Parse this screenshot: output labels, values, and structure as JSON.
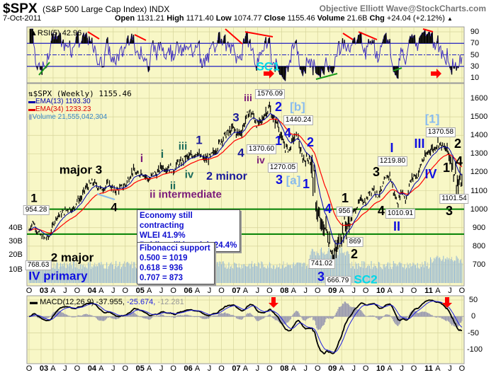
{
  "header": {
    "symbol": "$SPX",
    "name": "(S&P 500 Large Cap Index)",
    "exchange": "INDX",
    "brand": "Objective Elliott Wave@StockCharts.com",
    "date": "7-Oct-2011",
    "open_label": "Open",
    "open": "1131.21",
    "high_label": "High",
    "high": "1171.40",
    "low_label": "Low",
    "low": "1074.77",
    "close_label": "Close",
    "close": "1155.46",
    "volume_label": "Volume",
    "volume": "21.6B",
    "chg_label": "Chg",
    "chg": "+24.04 (+2.12%)",
    "chg_icon": "triangle-up-icon"
  },
  "rsi": {
    "legend": "RSI(5) 42.96",
    "ticks": [
      "90",
      "70",
      "50",
      "30",
      "10"
    ],
    "levels": [
      70,
      50,
      30
    ]
  },
  "main": {
    "legend": "$SPX (Weekly) 1155.46",
    "ema13": "EMA(13) 1193.30",
    "ema34": "EMA(34) 1233.23",
    "volume": "Volume 21,555,042,304",
    "price_ticks": [
      "1600",
      "1500",
      "1400",
      "1300",
      "1200",
      "1100",
      "1000",
      "900",
      "800",
      "700"
    ],
    "volume_ticks": [
      "40B",
      "30B",
      "20B",
      "10B"
    ],
    "support_levels": [
      1000,
      873
    ],
    "colors": {
      "ema13": "#0000aa",
      "ema34": "#ff0000",
      "price": "#000000",
      "volume": "#8fb8d8",
      "support": "#008000",
      "background": "#f8f7c6"
    }
  },
  "macd": {
    "legend_name": "MACD(12,26,9)",
    "macd": "-37.955,",
    "signal": "-25.674,",
    "hist": "-12.281",
    "ticks": [
      "50",
      "0",
      "-50",
      "-100"
    ]
  },
  "xaxis": [
    "O",
    "03",
    "A",
    "J",
    "O",
    "04",
    "A",
    "J",
    "O",
    "05",
    "A",
    "J",
    "O",
    "06",
    "A",
    "J",
    "O",
    "07",
    "A",
    "J",
    "O",
    "08",
    "A",
    "J",
    "O",
    "09",
    "A",
    "J",
    "O",
    "10",
    "A",
    "J",
    "O",
    "11",
    "A",
    "J",
    "O"
  ],
  "price_labels": [
    "1576.09",
    "1440.24",
    "1370.60",
    "1270.05",
    "1219.80",
    "1370.58",
    "1101.54",
    "956",
    "1010.91",
    "869",
    "741.02",
    "666.79",
    "954.28",
    "768.63"
  ],
  "annotations": [
    {
      "text": "SC1",
      "color": "#00d8e8"
    },
    {
      "text": "iii",
      "color": "#7a1a7a"
    },
    {
      "text": "2",
      "color": "#1010e0"
    },
    {
      "text": "[b]",
      "color": "#88bbee"
    },
    {
      "text": "4",
      "color": "#1010e0"
    },
    {
      "text": "1",
      "color": "#1010e0"
    },
    {
      "text": "2",
      "color": "#1010e0"
    },
    {
      "text": "iv",
      "color": "#7a1a7a"
    },
    {
      "text": "3",
      "color": "#1010e0"
    },
    {
      "text": "[a]",
      "color": "#88bbee"
    },
    {
      "text": "1",
      "color": "#1010e0"
    },
    {
      "text": "I",
      "color": "#1010e0"
    },
    {
      "text": "3",
      "color": "#000000"
    },
    {
      "text": "[1]",
      "color": "#88bbee"
    },
    {
      "text": "III",
      "color": "#1010e0"
    },
    {
      "text": "2",
      "color": "#000000"
    },
    {
      "text": "4",
      "color": "#000000"
    },
    {
      "text": "IV",
      "color": "#1010e0"
    },
    {
      "text": "1",
      "color": "#000000"
    },
    {
      "text": "3",
      "color": "#000000"
    },
    {
      "text": "1",
      "color": "#000000"
    },
    {
      "text": "4",
      "color": "#1010e0"
    },
    {
      "text": "4",
      "color": "#000000"
    },
    {
      "text": "II",
      "color": "#1010e0"
    },
    {
      "text": "2",
      "color": "#000000"
    },
    {
      "text": "3",
      "color": "#1010e0"
    },
    {
      "text": "SC2",
      "color": "#00d8e8"
    },
    {
      "text": "major 3",
      "color": "#000000"
    },
    {
      "text": "i",
      "color": "#7a1a7a"
    },
    {
      "text": "i",
      "color": "#1a6a5a"
    },
    {
      "text": "iii",
      "color": "#1a6a5a"
    },
    {
      "text": "1",
      "color": "#1a1a9a"
    },
    {
      "text": "3",
      "color": "#1a1a9a"
    },
    {
      "text": "4",
      "color": "#1a1a9a"
    },
    {
      "text": "iv",
      "color": "#1a6a5a"
    },
    {
      "text": "ii",
      "color": "#1a6a5a"
    },
    {
      "text": "2 minor",
      "color": "#1a1a9a"
    },
    {
      "text": "ii intermediate",
      "color": "#7a1a7a"
    },
    {
      "text": "4",
      "color": "#000000"
    },
    {
      "text": "1",
      "color": "#000000"
    },
    {
      "text": "2 major",
      "color": "#000000"
    },
    {
      "text": "IV primary",
      "color": "#1010e0"
    }
  ],
  "info_boxes": {
    "economy": [
      "Economy still contracting",
      "WLEI 41.9%",
      "Public still bearish 24.4%"
    ],
    "fibonacci": [
      "Fibonacci support",
      "0.500 = 1019",
      "0.618 = 936",
      "0.707 = 873"
    ]
  },
  "chart_data": {
    "type": "line",
    "title": "$SPX (Weekly)",
    "x_start": "Oct 2002",
    "x_end": "Oct 2011",
    "x_unit": "month",
    "ylim": [
      640,
      1640
    ],
    "series": [
      {
        "name": "$SPX",
        "values": [
          885,
          936,
          880,
          855,
          841,
          848,
          917,
          964,
          975,
          990,
          1008,
          996,
          1050,
          1058,
          1112,
          1131,
          1145,
          1126,
          1107,
          1121,
          1141,
          1101,
          1104,
          1115,
          1130,
          1174,
          1212,
          1181,
          1204,
          1181,
          1157,
          1192,
          1191,
          1234,
          1220,
          1229,
          1207,
          1249,
          1248,
          1280,
          1281,
          1295,
          1311,
          1270,
          1270,
          1277,
          1304,
          1336,
          1378,
          1401,
          1418,
          1438,
          1407,
          1421,
          1482,
          1531,
          1503,
          1455,
          1474,
          1527,
          1549,
          1481,
          1468,
          1379,
          1331,
          1323,
          1386,
          1400,
          1280,
          1267,
          1283,
          1166,
          969,
          896,
          903,
          826,
          735,
          798,
          873,
          919,
          919,
          987,
          1021,
          1057,
          1036,
          1096,
          1115,
          1074,
          1104,
          1169,
          1187,
          1089,
          1031,
          1102,
          1049,
          1141,
          1183,
          1181,
          1258,
          1286,
          1327,
          1326,
          1364,
          1345,
          1321,
          1292,
          1219,
          1131,
          1155
        ]
      },
      {
        "name": "EMA(13)"
      },
      {
        "name": "EMA(34)"
      }
    ]
  }
}
